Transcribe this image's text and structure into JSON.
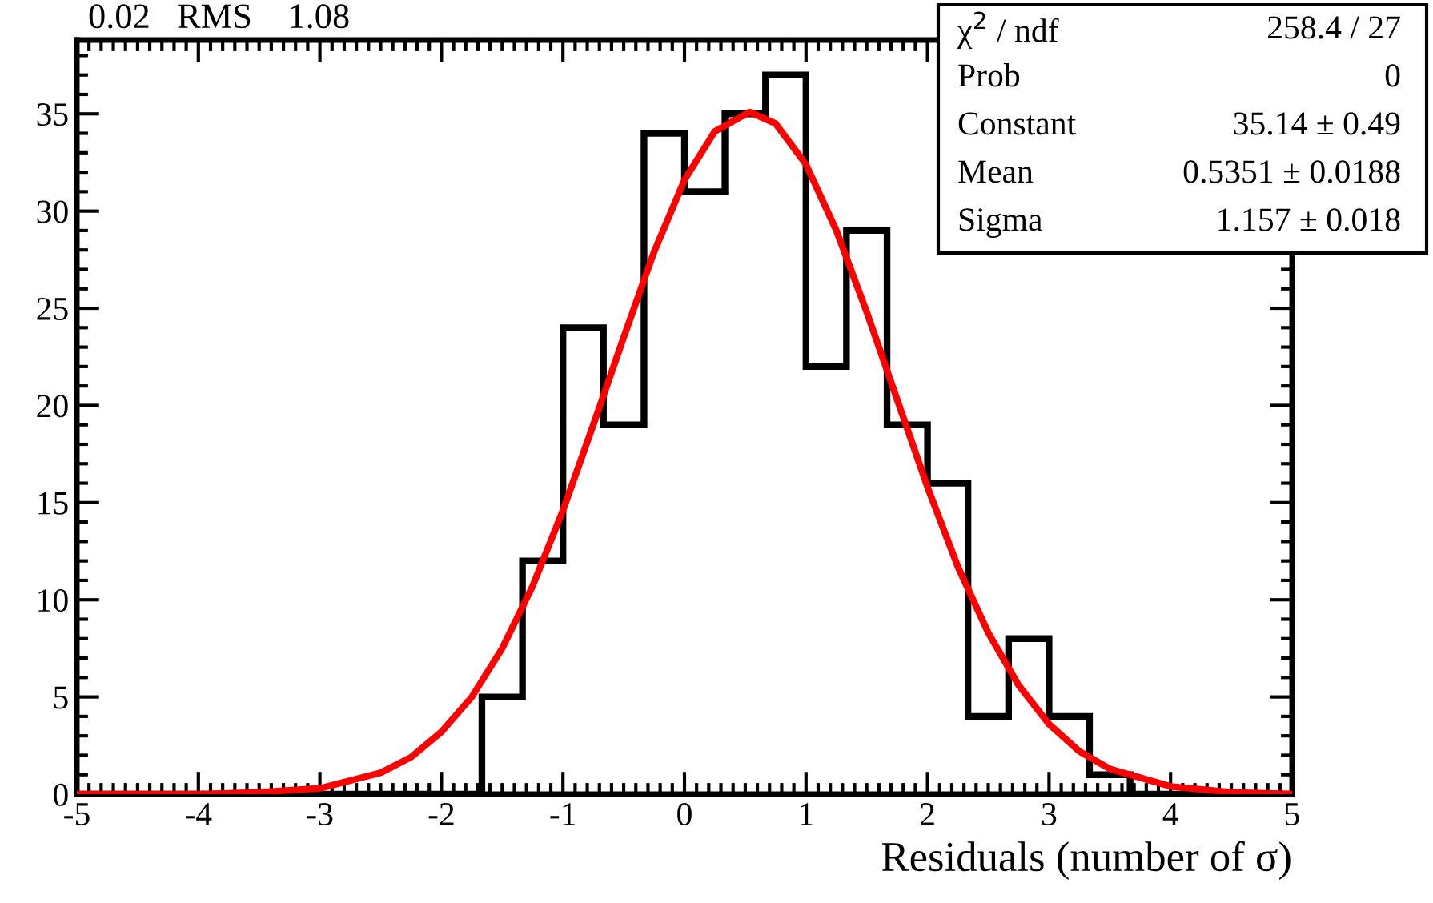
{
  "chart_data": {
    "type": "histogram",
    "xlabel": "Residuals (number of σ)",
    "color": "#000000",
    "bins": [
      -5,
      -4.667,
      -4.333,
      -4,
      -3.667,
      -3.333,
      -3,
      -2.667,
      -2.333,
      -2,
      -1.667,
      -1.333,
      -1,
      -0.667,
      -0.333,
      0,
      0.333,
      0.667,
      1,
      1.333,
      1.667,
      2,
      2.333,
      2.667,
      3,
      3.333,
      3.667,
      4,
      4.333,
      4.667,
      5
    ],
    "values": [
      0,
      0,
      0,
      0,
      0,
      0,
      0,
      0,
      0,
      0,
      5,
      12,
      24,
      19,
      34,
      31,
      35,
      37,
      22,
      29,
      19,
      16,
      4,
      8,
      4,
      1,
      0,
      0,
      0,
      0
    ],
    "series": [
      {
        "type": "line",
        "color": "#ff0000",
        "x": [
          -5,
          -4,
          -3.5,
          -3,
          -2.5,
          -2.25,
          -2,
          -1.75,
          -1.5,
          -1.25,
          -1,
          -0.75,
          -0.5,
          -0.25,
          0,
          0.25,
          0.535,
          0.75,
          1,
          1.25,
          1.5,
          1.75,
          2,
          2.25,
          2.5,
          2.75,
          3,
          3.25,
          3.5,
          4,
          4.5,
          5
        ],
        "values": [
          0,
          0,
          0.1,
          0.3,
          1.1,
          1.9,
          3.2,
          5.0,
          7.5,
          10.7,
          14.6,
          19.0,
          23.5,
          27.9,
          31.6,
          34.1,
          35.1,
          34.5,
          32.4,
          29.0,
          24.8,
          20.3,
          15.8,
          11.7,
          8.3,
          5.6,
          3.6,
          2.2,
          1.3,
          0.4,
          0.1,
          0
        ]
      }
    ],
    "xlim": [
      -5,
      5
    ],
    "ylim": [
      0,
      38.8
    ],
    "xticks": [
      {
        "value": -5,
        "label": "-5"
      },
      {
        "value": -4,
        "label": "-4"
      },
      {
        "value": -3,
        "label": "-3"
      },
      {
        "value": -2,
        "label": "-2"
      },
      {
        "value": -1,
        "label": "-1"
      },
      0,
      1,
      2,
      3,
      4,
      5
    ],
    "yticks": [
      0,
      5,
      10,
      15,
      20,
      25,
      30,
      35
    ],
    "annotations": [
      "0.02   RMS    1.08",
      "χ$^{2}$ / ndf",
      "258.4 / 27",
      "Prob",
      "0",
      "Constant",
      "35.14 ± 0.49",
      "Mean",
      "0.5351 ± 0.0188",
      "Sigma",
      "1.157 ± 0.018"
    ]
  }
}
